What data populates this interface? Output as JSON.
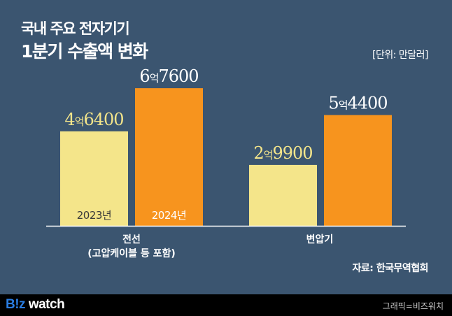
{
  "title_line1": "국내 주요 전자기기",
  "title_line2": "1분기 수출액 변화",
  "unit_label": "[단위: 만달러]",
  "source": "자료: 한국무역협회",
  "footer": {
    "logo_prefix": "B!z",
    "logo_suffix": " watch",
    "credit": "그래픽=비즈워치"
  },
  "colors": {
    "background": "#3b5570",
    "2023": "#f4e58a",
    "2024": "#f7941e",
    "logo_blue": "#2a7de1"
  },
  "chart_data": {
    "type": "bar",
    "title": "국내 주요 전자기기 1분기 수출액 변화",
    "ylabel": "[단위: 만달러]",
    "ylim": [
      0,
      80000
    ],
    "grid": false,
    "categories": [
      {
        "line1": "전선",
        "line2": "(고압케이블 등 포함)"
      },
      {
        "line1": "변압기",
        "line2": ""
      }
    ],
    "series": [
      {
        "name": "2023년",
        "values": [
          46400,
          29900
        ],
        "labels": [
          [
            "4",
            "억",
            "6400"
          ],
          [
            "2",
            "억",
            "9900"
          ]
        ]
      },
      {
        "name": "2024년",
        "values": [
          67600,
          54400
        ],
        "labels": [
          [
            "6",
            "억",
            "7600"
          ],
          [
            "5",
            "억",
            "4400"
          ]
        ]
      }
    ]
  }
}
